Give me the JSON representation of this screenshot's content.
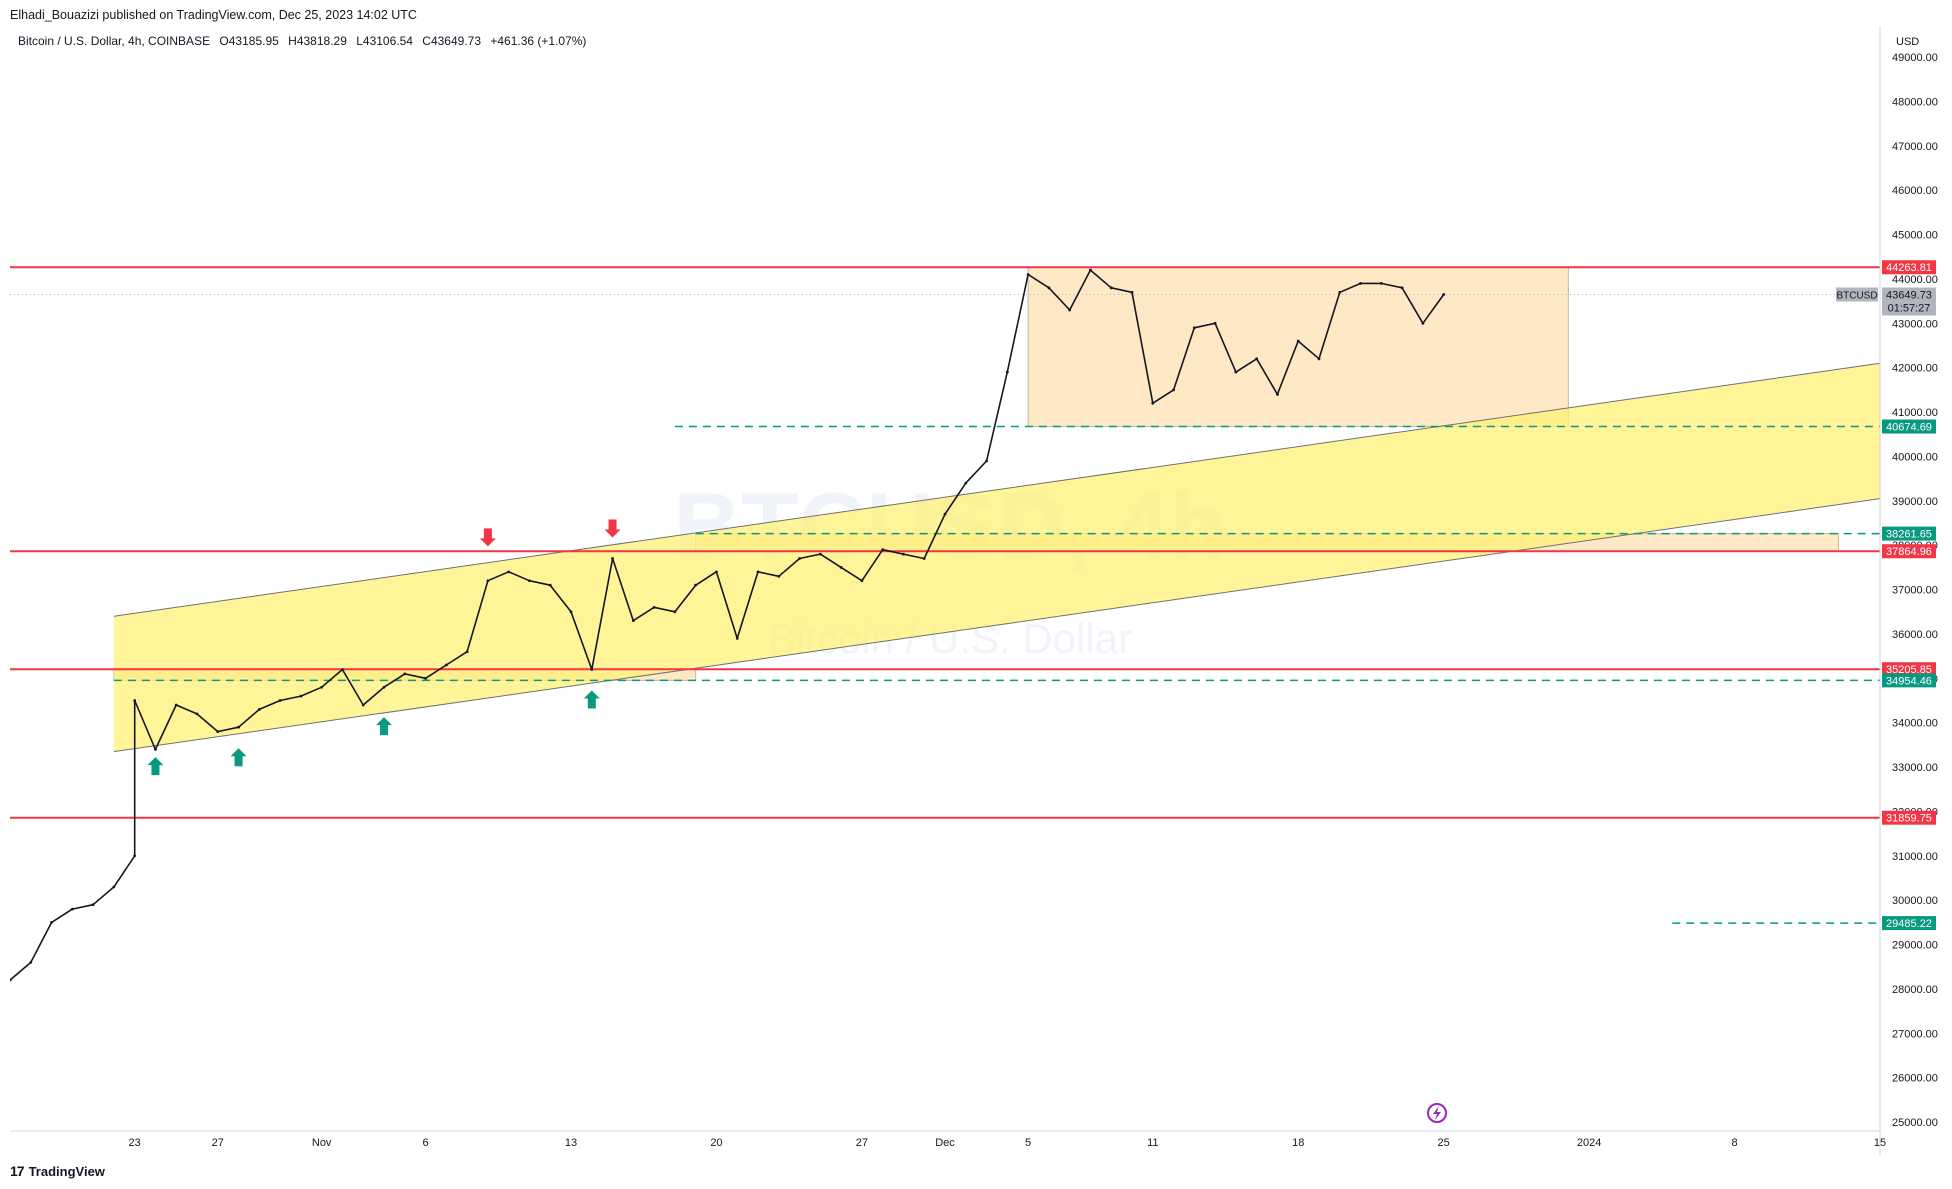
{
  "header": {
    "published": "Elhadi_Bouazizi published on TradingView.com, Dec 25, 2023 14:02 UTC"
  },
  "legend": {
    "symbol": "Bitcoin / U.S. Dollar, 4h, COINBASE",
    "open": "O43185.95",
    "high": "H43818.29",
    "low": "L43106.54",
    "close": "C43649.73",
    "change": "+461.36 (+1.07%)"
  },
  "watermark": {
    "line1": "BTCUSD, 4h",
    "line2": "Bitcoin / U.S. Dollar"
  },
  "footer": {
    "brand": "TradingView",
    "logo": "17"
  },
  "colors": {
    "resistance": "#f23645",
    "support": "#089981",
    "channel": "#fff176",
    "range_box": "#ffe0b2",
    "candle": "#131722",
    "price_tag": "#b2b5be"
  },
  "chart_data": {
    "type": "candlestick",
    "currency": "USD",
    "y_range": [
      24800,
      49700
    ],
    "y_ticks": [
      25000,
      26000,
      27000,
      28000,
      29000,
      30000,
      31000,
      32000,
      33000,
      34000,
      35000,
      36000,
      37000,
      38000,
      39000,
      40000,
      41000,
      42000,
      43000,
      44000,
      45000,
      46000,
      47000,
      48000,
      49000
    ],
    "x_range": [
      "2023-10-17",
      "2024-01-15"
    ],
    "x_ticks": [
      {
        "date": "2023-10-23",
        "label": "23"
      },
      {
        "date": "2023-10-27",
        "label": "27"
      },
      {
        "date": "2023-11-01",
        "label": "Nov"
      },
      {
        "date": "2023-11-06",
        "label": "6"
      },
      {
        "date": "2023-11-13",
        "label": "13"
      },
      {
        "date": "2023-11-20",
        "label": "20"
      },
      {
        "date": "2023-11-27",
        "label": "27"
      },
      {
        "date": "2023-12-01",
        "label": "Dec"
      },
      {
        "date": "2023-12-05",
        "label": "5"
      },
      {
        "date": "2023-12-11",
        "label": "11"
      },
      {
        "date": "2023-12-18",
        "label": "18"
      },
      {
        "date": "2023-12-25",
        "label": "25"
      },
      {
        "date": "2024-01-01",
        "label": "2024"
      },
      {
        "date": "2024-01-08",
        "label": "8"
      },
      {
        "date": "2024-01-15",
        "label": "15"
      }
    ],
    "price_path": [
      [
        "2023-10-17",
        28200
      ],
      [
        "2023-10-18",
        28600
      ],
      [
        "2023-10-19",
        29500
      ],
      [
        "2023-10-20",
        29800
      ],
      [
        "2023-10-21",
        29900
      ],
      [
        "2023-10-22",
        30300
      ],
      [
        "2023-10-23",
        31000
      ],
      [
        "2023-10-23",
        34500
      ],
      [
        "2023-10-24",
        33400
      ],
      [
        "2023-10-25",
        34400
      ],
      [
        "2023-10-26",
        34200
      ],
      [
        "2023-10-27",
        33800
      ],
      [
        "2023-10-28",
        33900
      ],
      [
        "2023-10-29",
        34300
      ],
      [
        "2023-10-30",
        34500
      ],
      [
        "2023-10-31",
        34600
      ],
      [
        "2023-11-01",
        34800
      ],
      [
        "2023-11-02",
        35200
      ],
      [
        "2023-11-03",
        34400
      ],
      [
        "2023-11-04",
        34800
      ],
      [
        "2023-11-05",
        35100
      ],
      [
        "2023-11-06",
        35000
      ],
      [
        "2023-11-07",
        35300
      ],
      [
        "2023-11-08",
        35600
      ],
      [
        "2023-11-09",
        37200
      ],
      [
        "2023-11-10",
        37400
      ],
      [
        "2023-11-11",
        37200
      ],
      [
        "2023-11-12",
        37100
      ],
      [
        "2023-11-13",
        36500
      ],
      [
        "2023-11-14",
        35200
      ],
      [
        "2023-11-15",
        37700
      ],
      [
        "2023-11-16",
        36300
      ],
      [
        "2023-11-17",
        36600
      ],
      [
        "2023-11-18",
        36500
      ],
      [
        "2023-11-19",
        37100
      ],
      [
        "2023-11-20",
        37400
      ],
      [
        "2023-11-21",
        35900
      ],
      [
        "2023-11-22",
        37400
      ],
      [
        "2023-11-23",
        37300
      ],
      [
        "2023-11-24",
        37700
      ],
      [
        "2023-11-25",
        37800
      ],
      [
        "2023-11-26",
        37500
      ],
      [
        "2023-11-27",
        37200
      ],
      [
        "2023-11-28",
        37900
      ],
      [
        "2023-11-29",
        37800
      ],
      [
        "2023-11-30",
        37700
      ],
      [
        "2023-12-01",
        38700
      ],
      [
        "2023-12-02",
        39400
      ],
      [
        "2023-12-03",
        39900
      ],
      [
        "2023-12-04",
        41900
      ],
      [
        "2023-12-05",
        44100
      ],
      [
        "2023-12-06",
        43800
      ],
      [
        "2023-12-07",
        43300
      ],
      [
        "2023-12-08",
        44200
      ],
      [
        "2023-12-09",
        43800
      ],
      [
        "2023-12-10",
        43700
      ],
      [
        "2023-12-11",
        41200
      ],
      [
        "2023-12-12",
        41500
      ],
      [
        "2023-12-13",
        42900
      ],
      [
        "2023-12-14",
        43000
      ],
      [
        "2023-12-15",
        41900
      ],
      [
        "2023-12-16",
        42200
      ],
      [
        "2023-12-17",
        41400
      ],
      [
        "2023-12-18",
        42600
      ],
      [
        "2023-12-19",
        42200
      ],
      [
        "2023-12-20",
        43700
      ],
      [
        "2023-12-21",
        43900
      ],
      [
        "2023-12-22",
        43900
      ],
      [
        "2023-12-23",
        43800
      ],
      [
        "2023-12-24",
        43000
      ],
      [
        "2023-12-25",
        43650
      ]
    ],
    "last_price": {
      "symbol": "BTCUSD",
      "value": "43649.73",
      "countdown": "01:57:27",
      "y": 43649.73
    },
    "horizontal_levels": [
      {
        "y": 44263.81,
        "label": "44263.81",
        "style": "solid",
        "color": "#f23645",
        "from": "2023-10-17"
      },
      {
        "y": 40674.69,
        "label": "40674.69",
        "style": "dashed",
        "color": "#089981",
        "from": "2023-11-18"
      },
      {
        "y": 38261.65,
        "label": "38261.65",
        "style": "dashed",
        "color": "#089981",
        "from": "2023-11-19"
      },
      {
        "y": 37864.96,
        "label": "37864.96",
        "style": "solid",
        "color": "#f23645",
        "from": "2023-10-17"
      },
      {
        "y": 35205.85,
        "label": "35205.85",
        "style": "solid",
        "color": "#f23645",
        "from": "2023-10-17"
      },
      {
        "y": 34954.46,
        "label": "34954.46",
        "style": "dashed",
        "color": "#089981",
        "from": "2023-10-22"
      },
      {
        "y": 31859.75,
        "label": "31859.75",
        "style": "solid",
        "color": "#f23645",
        "from": "2023-10-17"
      },
      {
        "y": 29485.22,
        "label": "29485.22",
        "style": "dashed",
        "color": "#089981",
        "from": "2024-01-05"
      }
    ],
    "channel": {
      "upper": [
        [
          "2023-10-22",
          36400
        ],
        [
          "2024-01-15",
          42100
        ]
      ],
      "lower": [
        [
          "2023-10-22",
          33350
        ],
        [
          "2024-01-15",
          39050
        ]
      ]
    },
    "zones": [
      {
        "x": [
          "2023-12-05",
          "2023-12-31"
        ],
        "y": [
          40674.69,
          44263.81
        ]
      },
      {
        "x": [
          "2023-11-19",
          "2024-01-13"
        ],
        "y": [
          37864.96,
          38261.65
        ]
      },
      {
        "x": [
          "2023-10-22",
          "2023-11-19"
        ],
        "y": [
          34954.46,
          35205.85
        ]
      }
    ],
    "arrows": [
      {
        "date": "2023-10-24",
        "y": 33000,
        "dir": "up",
        "color": "#089981"
      },
      {
        "date": "2023-10-28",
        "y": 33200,
        "dir": "up",
        "color": "#089981"
      },
      {
        "date": "2023-11-04",
        "y": 33900,
        "dir": "up",
        "color": "#089981"
      },
      {
        "date": "2023-11-14",
        "y": 34500,
        "dir": "up",
        "color": "#089981"
      },
      {
        "date": "2023-11-09",
        "y": 38200,
        "dir": "down",
        "color": "#f23645"
      },
      {
        "date": "2023-11-15",
        "y": 38400,
        "dir": "down",
        "color": "#f23645"
      }
    ]
  }
}
